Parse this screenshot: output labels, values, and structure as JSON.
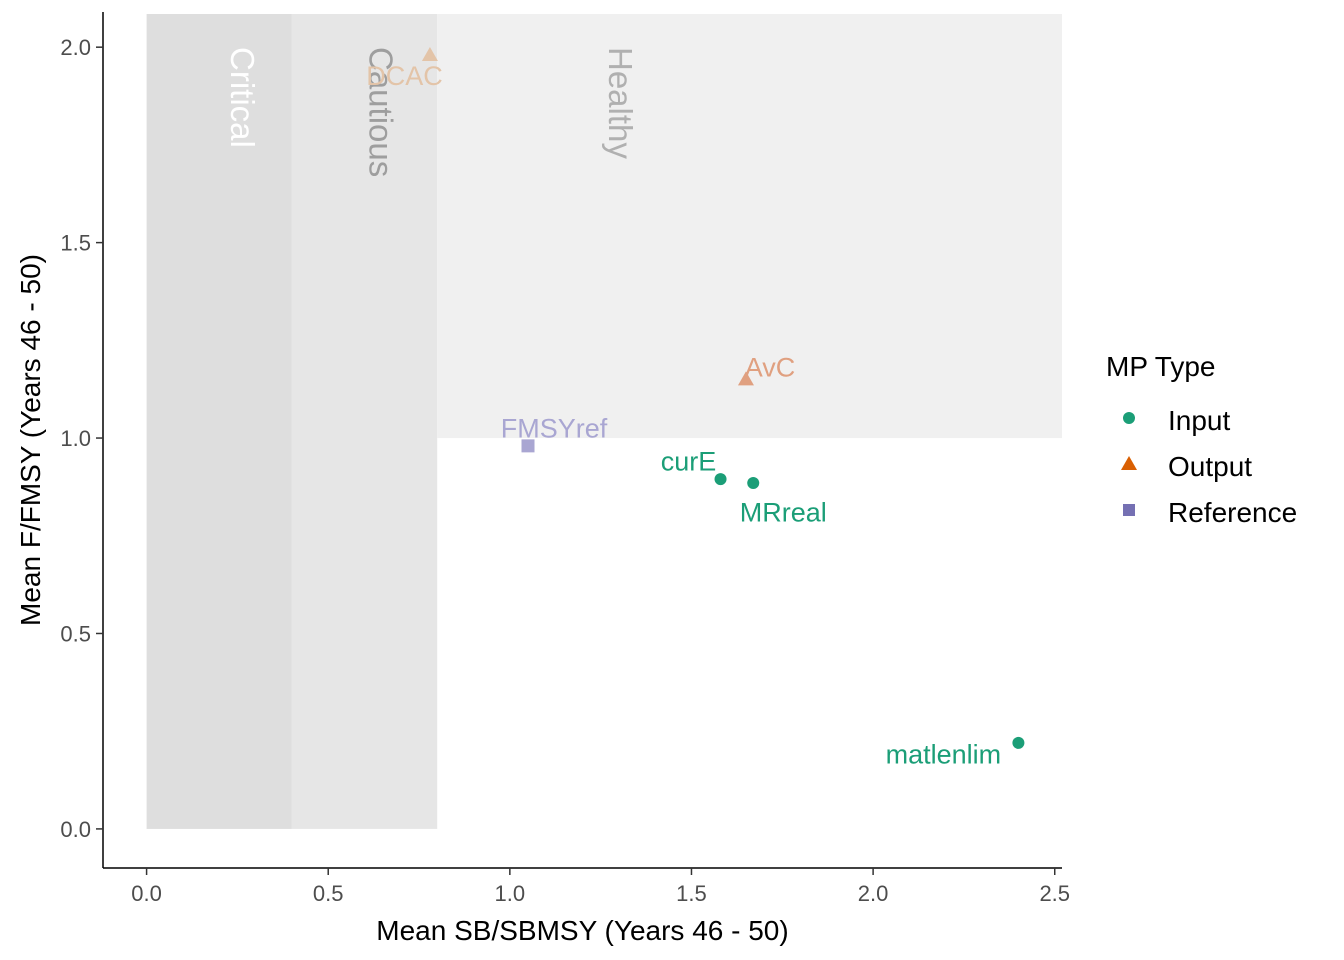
{
  "chart_data": {
    "type": "scatter",
    "xlabel": "Mean SB/SBMSY (Years 46 - 50)",
    "ylabel": "Mean F/FMSY (Years 46 - 50)",
    "xlim": [
      -0.12,
      2.52
    ],
    "ylim": [
      -0.1,
      2.09
    ],
    "x_ticks": [
      "0.0",
      "0.5",
      "1.0",
      "1.5",
      "2.0",
      "2.5"
    ],
    "y_ticks": [
      "0.0",
      "0.5",
      "1.0",
      "1.5",
      "2.0"
    ],
    "grid": false,
    "zones": [
      {
        "label": "Critical",
        "x0": 0,
        "x1": 0.4,
        "y0": 0,
        "y1": 2.09,
        "color": "#dedede",
        "label_color": "#ffffff"
      },
      {
        "label": "Cautious",
        "x0": 0.4,
        "x1": 0.8,
        "y0": 0,
        "y1": 2.09,
        "color": "#e6e6e6",
        "label_color": "#9e9e9e"
      },
      {
        "label": "Healthy",
        "x0": 0.8,
        "x1": 2.52,
        "y0": 1.0,
        "y1": 2.09,
        "color": "#f0f0f0",
        "label_color": "#b0b0b0"
      }
    ],
    "extra_zone": {
      "x0": 0.4,
      "x1": 0.8,
      "y0": 1.0,
      "y1": 2.09
    },
    "points": [
      {
        "label": "DCAC",
        "x": 0.78,
        "y": 1.98,
        "type": "Output",
        "faded": true
      },
      {
        "label": "AvC",
        "x": 1.65,
        "y": 1.15,
        "type": "Output",
        "faded": true
      },
      {
        "label": "FMSYref",
        "x": 1.05,
        "y": 0.98,
        "type": "Reference",
        "faded": true
      },
      {
        "label": "curE",
        "x": 1.58,
        "y": 0.895,
        "type": "Input",
        "faded": false
      },
      {
        "label": "MRreal",
        "x": 1.67,
        "y": 0.885,
        "type": "Input",
        "faded": false
      },
      {
        "label": "matlenlim",
        "x": 2.4,
        "y": 0.22,
        "type": "Input",
        "faded": false
      }
    ],
    "legend": {
      "title": "MP Type",
      "placement": "right",
      "entries": [
        {
          "label": "Input",
          "shape": "circle",
          "color": "#1b9e77"
        },
        {
          "label": "Output",
          "shape": "triangle",
          "color": "#d95f02"
        },
        {
          "label": "Reference",
          "shape": "square",
          "color": "#7570b3"
        }
      ]
    },
    "colors": {
      "Input": "#1b9e77",
      "Output": "#d95f02",
      "Reference": "#7570b3",
      "Output_faded": "#e0a080",
      "Output_faded_dcac": "#e3c4a8",
      "Reference_faded": "#a9a6d2"
    }
  }
}
